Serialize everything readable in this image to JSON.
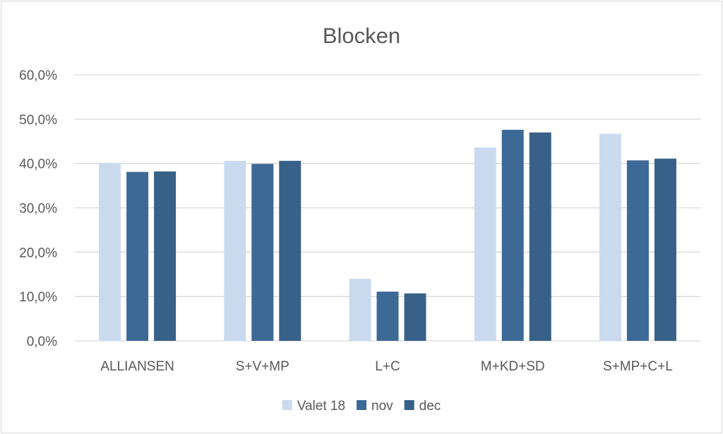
{
  "chart_data": {
    "type": "bar",
    "title": "Blocken",
    "xlabel": "",
    "ylabel": "",
    "categories": [
      "ALLIANSEN",
      "S+V+MP",
      "L+C",
      "M+KD+SD",
      "S+MP+C+L"
    ],
    "series": [
      {
        "name": "Valet 18",
        "color": "#c9daee",
        "values": [
          40.1,
          40.6,
          14.0,
          43.6,
          46.7
        ]
      },
      {
        "name": "nov",
        "color": "#3d6996",
        "values": [
          38.1,
          39.9,
          11.1,
          47.6,
          40.7
        ]
      },
      {
        "name": "dec",
        "color": "#376188",
        "values": [
          38.2,
          40.6,
          10.7,
          47.0,
          41.1
        ]
      }
    ],
    "ylim": [
      0,
      60
    ],
    "yticks": [
      "0,0%",
      "10,0%",
      "20,0%",
      "30,0%",
      "40,0%",
      "50,0%",
      "60,0%"
    ],
    "grid": true,
    "legend_position": "bottom",
    "gridline_color": "#d9d9d9"
  }
}
